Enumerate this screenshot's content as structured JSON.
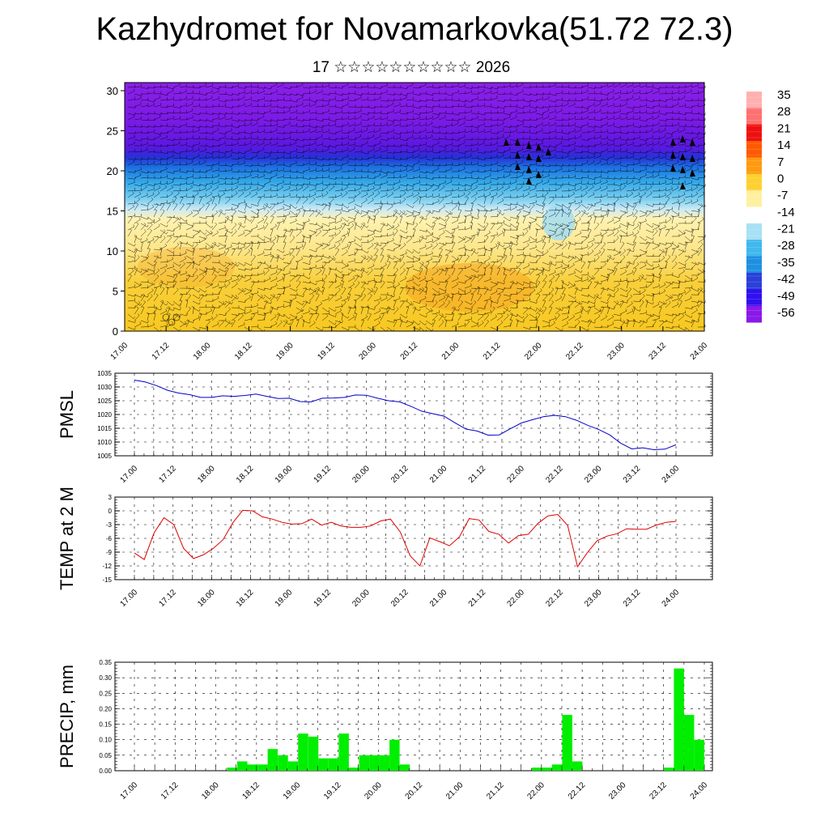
{
  "title": "Kazhydromet for Novamarkovka(51.72 72.3)",
  "subtitle": "17 ☆☆☆☆☆☆☆☆☆☆ 2026",
  "time_labels": [
    "17.00",
    "17.12",
    "18.00",
    "18.12",
    "19.00",
    "19.12",
    "20.00",
    "20.12",
    "21.00",
    "21.12",
    "22.00",
    "22.12",
    "23.00",
    "23.12",
    "24.00"
  ],
  "colors": {
    "pmsl": "#0000cc",
    "temp": "#dd0000",
    "precip": "#00ee00",
    "wind": "#000000"
  },
  "chart_data": [
    {
      "name": "cross-section",
      "type": "heatmap",
      "title": "",
      "ylabel": "",
      "ylim": [
        0,
        30
      ],
      "yticks": [
        "0",
        "5",
        "10",
        "15",
        "20",
        "25",
        "30"
      ],
      "legend": {
        "labels": [
          "35",
          "28",
          "21",
          "14",
          "7",
          "0",
          "-7",
          "-14",
          "-21",
          "-28",
          "-35",
          "-42",
          "-49",
          "-56"
        ],
        "colors": [
          "#ffb0b0",
          "#ff7070",
          "#ee1010",
          "#ff5a00",
          "#ff9a10",
          "#ffd030",
          "#fff0a0",
          "#ffffff",
          "#a8e0f5",
          "#40b8ee",
          "#1f90e0",
          "#2a40d8",
          "#3010ee",
          "#8a18e8"
        ]
      }
    },
    {
      "name": "pmsl",
      "type": "line",
      "ylabel": "PMSL",
      "ylim": [
        1005,
        1035
      ],
      "yticks": [
        "1005",
        "1010",
        "1015",
        "1020",
        "1025",
        "1030",
        "1035"
      ],
      "series": [
        {
          "name": "PMSL",
          "values": [
            1032.5,
            1031.8,
            1030.5,
            1028.8,
            1027.8,
            1027.2,
            1026.2,
            1026.2,
            1026.8,
            1026.6,
            1026.9,
            1027.4,
            1026.6,
            1025.8,
            1025.9,
            1024.7,
            1024.6,
            1025.9,
            1026.0,
            1026.2,
            1027.1,
            1027.0,
            1025.9,
            1025.0,
            1024.6,
            1023.0,
            1021.2,
            1020.3,
            1019.4,
            1017.0,
            1014.7,
            1014.0,
            1012.5,
            1012.6,
            1014.8,
            1016.9,
            1018.1,
            1019.2,
            1019.7,
            1019.2,
            1017.9,
            1016.1,
            1014.6,
            1012.6,
            1009.6,
            1007.5,
            1007.9,
            1007.2,
            1007.4,
            1009.0
          ]
        }
      ]
    },
    {
      "name": "temp",
      "type": "line",
      "ylabel": "TEMP at 2 M",
      "ylim": [
        -15,
        3
      ],
      "yticks": [
        "-15",
        "-12",
        "-9",
        "-6",
        "-3",
        "0",
        "3"
      ],
      "series": [
        {
          "name": "TEMP",
          "values": [
            -9.2,
            -10.6,
            -4.8,
            -1.5,
            -3.0,
            -8.2,
            -10.4,
            -9.6,
            -8.2,
            -6.3,
            -2.6,
            0.1,
            0.0,
            -1.3,
            -1.8,
            -2.5,
            -2.9,
            -2.8,
            -1.8,
            -3.1,
            -2.5,
            -3.3,
            -3.6,
            -3.6,
            -3.3,
            -2.2,
            -1.8,
            -4.6,
            -9.8,
            -12.0,
            -5.9,
            -6.7,
            -7.6,
            -5.7,
            -1.7,
            -2.0,
            -4.5,
            -5.1,
            -7.0,
            -5.4,
            -5.1,
            -2.7,
            -1.1,
            -0.8,
            -3.2,
            -12.2,
            -9.1,
            -6.5,
            -5.5,
            -5.0,
            -3.9,
            -4.0,
            -4.0,
            -3.1,
            -2.5,
            -2.3
          ]
        }
      ]
    },
    {
      "name": "precip",
      "type": "bar",
      "ylabel": "PRECIP, mm",
      "ylim": [
        0,
        0.35
      ],
      "yticks": [
        "0.00",
        "0.05",
        "0.10",
        "0.15",
        "0.20",
        "0.25",
        "0.30",
        "0.35"
      ],
      "series": [
        {
          "name": "PRECIP",
          "values": [
            0,
            0,
            0,
            0,
            0,
            0,
            0,
            0,
            0,
            0,
            0.01,
            0.03,
            0.02,
            0.02,
            0.07,
            0.05,
            0.03,
            0.12,
            0.11,
            0.04,
            0.04,
            0.12,
            0.01,
            0.05,
            0.05,
            0.05,
            0.1,
            0.02,
            0,
            0,
            0,
            0,
            0,
            0,
            0,
            0,
            0,
            0,
            0,
            0,
            0.01,
            0.01,
            0.02,
            0.18,
            0.03,
            0,
            0,
            0,
            0,
            0,
            0,
            0,
            0,
            0.01,
            0.33,
            0.18,
            0.1
          ]
        }
      ]
    }
  ]
}
